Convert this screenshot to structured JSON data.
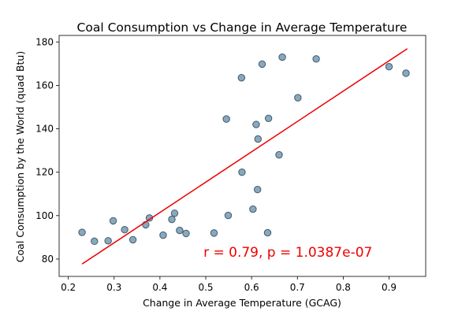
{
  "chart_data": {
    "type": "scatter",
    "title": "Coal Consumption vs Change in Average Temperature",
    "xlabel": "Change in Average Temperature (GCAG)",
    "ylabel": "Coal Consumption by the World (quad Btu)",
    "xlim": [
      0.18,
      0.98
    ],
    "ylim": [
      72,
      183
    ],
    "xticks": [
      0.2,
      0.3,
      0.4,
      0.5,
      0.6,
      0.7,
      0.8,
      0.9
    ],
    "yticks": [
      80,
      100,
      120,
      140,
      160,
      180
    ],
    "grid": false,
    "colors": {
      "point_fill": "#8aa8bd",
      "point_edge": "#3f5a6c",
      "regression_line": "#ee0000",
      "annotation": "#ee0000"
    },
    "points": [
      {
        "x": 0.23,
        "y": 92.3
      },
      {
        "x": 0.257,
        "y": 88.2
      },
      {
        "x": 0.287,
        "y": 88.4
      },
      {
        "x": 0.298,
        "y": 97.6
      },
      {
        "x": 0.323,
        "y": 93.5
      },
      {
        "x": 0.341,
        "y": 88.9
      },
      {
        "x": 0.369,
        "y": 95.8
      },
      {
        "x": 0.377,
        "y": 98.9
      },
      {
        "x": 0.407,
        "y": 91.0
      },
      {
        "x": 0.426,
        "y": 98.3
      },
      {
        "x": 0.432,
        "y": 101.1
      },
      {
        "x": 0.443,
        "y": 93.2
      },
      {
        "x": 0.457,
        "y": 91.8
      },
      {
        "x": 0.518,
        "y": 92.0
      },
      {
        "x": 0.545,
        "y": 144.5
      },
      {
        "x": 0.549,
        "y": 100.1
      },
      {
        "x": 0.578,
        "y": 163.5
      },
      {
        "x": 0.579,
        "y": 120.0
      },
      {
        "x": 0.603,
        "y": 103.0
      },
      {
        "x": 0.61,
        "y": 142.0
      },
      {
        "x": 0.613,
        "y": 112.0
      },
      {
        "x": 0.614,
        "y": 135.3
      },
      {
        "x": 0.623,
        "y": 169.8
      },
      {
        "x": 0.635,
        "y": 92.1
      },
      {
        "x": 0.637,
        "y": 144.8
      },
      {
        "x": 0.66,
        "y": 128.0
      },
      {
        "x": 0.667,
        "y": 173.0
      },
      {
        "x": 0.701,
        "y": 154.3
      },
      {
        "x": 0.741,
        "y": 172.2
      },
      {
        "x": 0.9,
        "y": 168.6
      },
      {
        "x": 0.937,
        "y": 165.6
      }
    ],
    "regression": {
      "x": [
        0.23,
        0.94
      ],
      "y": [
        77.7,
        176.9
      ]
    },
    "annotation": {
      "text": "r = 0.79, p = 1.0387e-07",
      "x": 0.495,
      "y": 81
    }
  }
}
